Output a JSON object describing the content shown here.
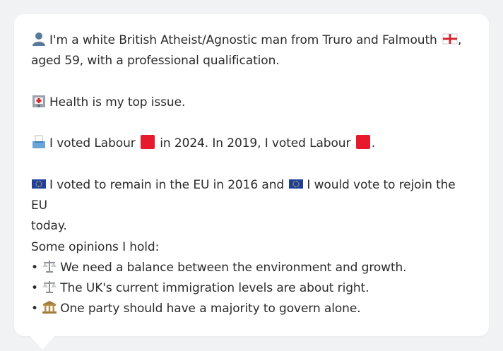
{
  "card": {
    "intro": {
      "icon": "person-silhouette-icon",
      "text_before_flag": "I'm a white British Atheist/Agnostic man from Truro and Falmouth",
      "flag_icon": "england-flag-icon",
      "text_after_flag": ",",
      "line2": "aged 59, with a professional qualification."
    },
    "health": {
      "icon": "hospital-icon",
      "text": "Health is my top issue."
    },
    "vote": {
      "icon": "ballot-box-icon",
      "part1": "I voted Labour",
      "part2": "in 2024. In 2019, I voted Labour",
      "part3": ".",
      "party_color": "#e6192d"
    },
    "eu": {
      "icon": "eu-flag-icon",
      "part1": "I voted to remain in the EU in 2016 and",
      "part2": "I would vote to rejoin the EU",
      "line2": "today."
    },
    "opinions": {
      "heading": "Some opinions I hold:",
      "items": [
        {
          "icon": "balance-scale-icon",
          "text": "We need a balance between the environment and growth."
        },
        {
          "icon": "balance-scale-icon",
          "text": "The UK's current immigration levels are about right."
        },
        {
          "icon": "classical-building-icon",
          "text": "One party should have a majority to govern alone."
        }
      ]
    }
  }
}
